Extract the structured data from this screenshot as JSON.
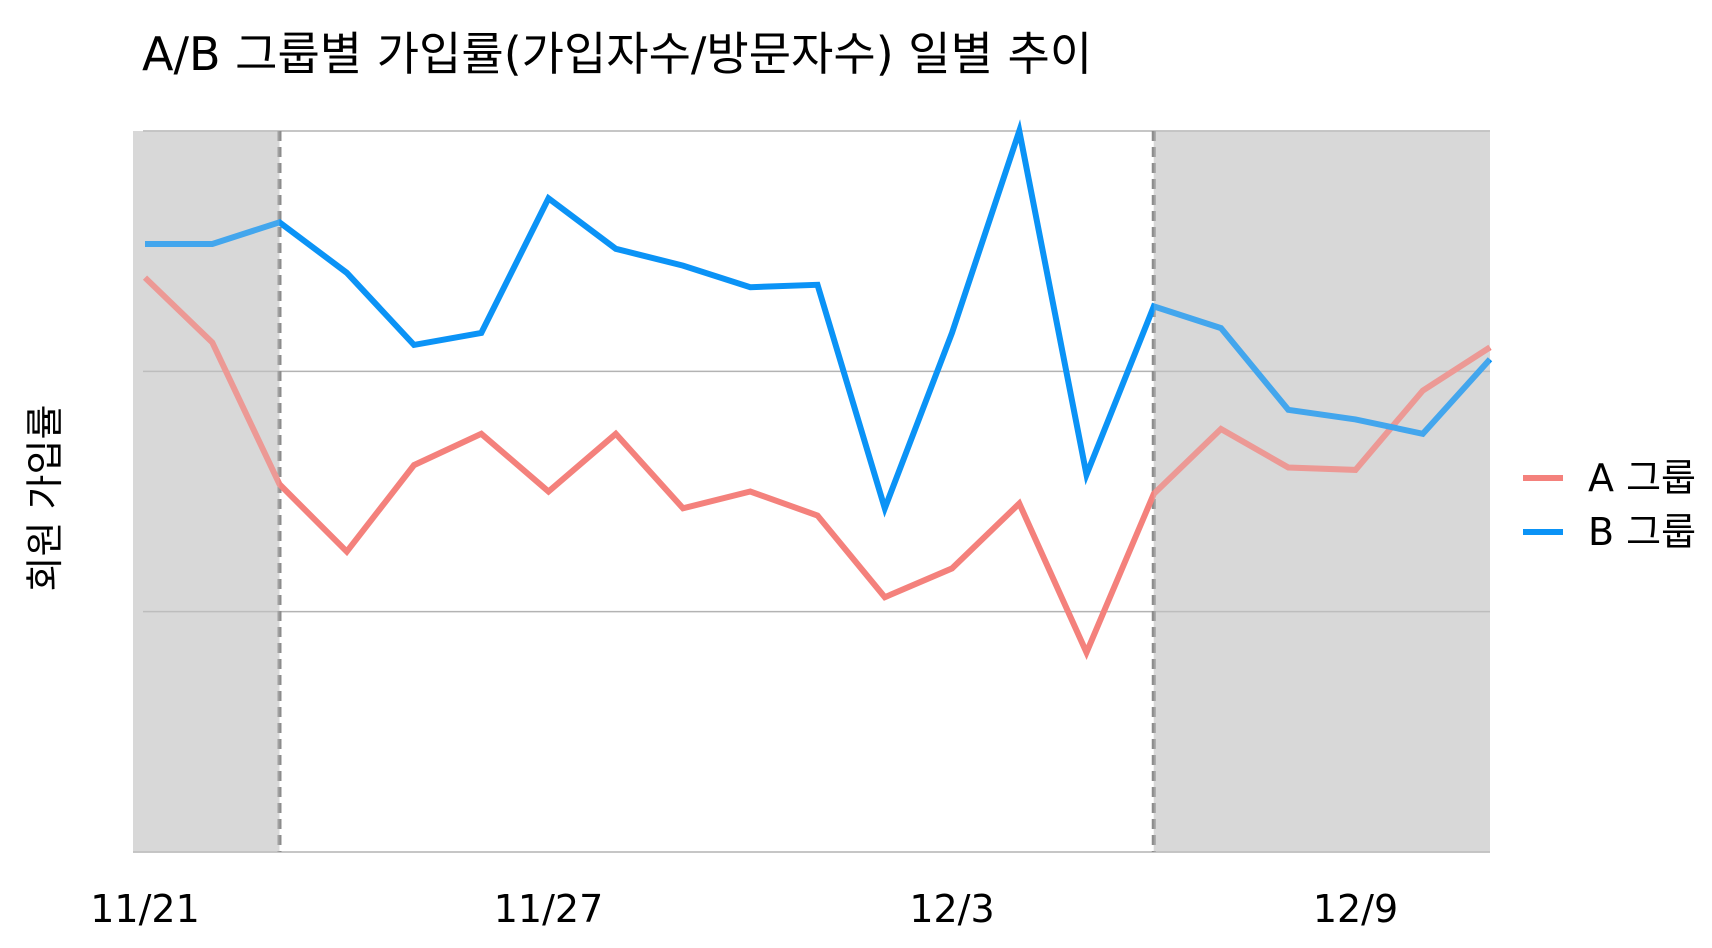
{
  "chart_data": {
    "type": "line",
    "title": "A/B 그룹별 가입률(가입자수/방문자수) 일별 추이",
    "xlabel": "",
    "ylabel": "회원 가입률",
    "x": [
      "11/21",
      "11/22",
      "11/23",
      "11/24",
      "11/25",
      "11/26",
      "11/27",
      "11/28",
      "11/29",
      "11/30",
      "12/1",
      "12/2",
      "12/3",
      "12/4",
      "12/5",
      "12/6",
      "12/7",
      "12/8",
      "12/9",
      "12/10",
      "12/11"
    ],
    "x_ticks": [
      "11/21",
      "11/27",
      "12/3",
      "12/9"
    ],
    "ylim": [
      0,
      3
    ],
    "y_grid": [
      1,
      2,
      3
    ],
    "grid": true,
    "legend_position": "right",
    "shaded_periods": [
      [
        "11/21",
        "11/23"
      ],
      [
        "12/6",
        "12/11"
      ]
    ],
    "dashed_markers": [
      "11/23",
      "12/6"
    ],
    "series": [
      {
        "name": "A 그룹",
        "color": "#f4817c",
        "values": [
          2.39,
          2.12,
          1.53,
          1.25,
          1.61,
          1.74,
          1.5,
          1.74,
          1.43,
          1.5,
          1.4,
          1.06,
          1.18,
          1.45,
          0.83,
          1.49,
          1.76,
          1.6,
          1.59,
          1.92,
          2.1
        ]
      },
      {
        "name": "B 그룹",
        "color": "#0b93f6",
        "values": [
          2.53,
          2.53,
          2.62,
          2.41,
          2.11,
          2.16,
          2.72,
          2.51,
          2.44,
          2.35,
          2.36,
          1.43,
          2.16,
          3.0,
          1.57,
          2.27,
          2.18,
          1.84,
          1.8,
          1.74,
          2.05
        ]
      }
    ],
    "colors": {
      "shade": "#d9d9d9",
      "grid": "#b3b3b3",
      "marker": "#8c8c8c"
    }
  }
}
